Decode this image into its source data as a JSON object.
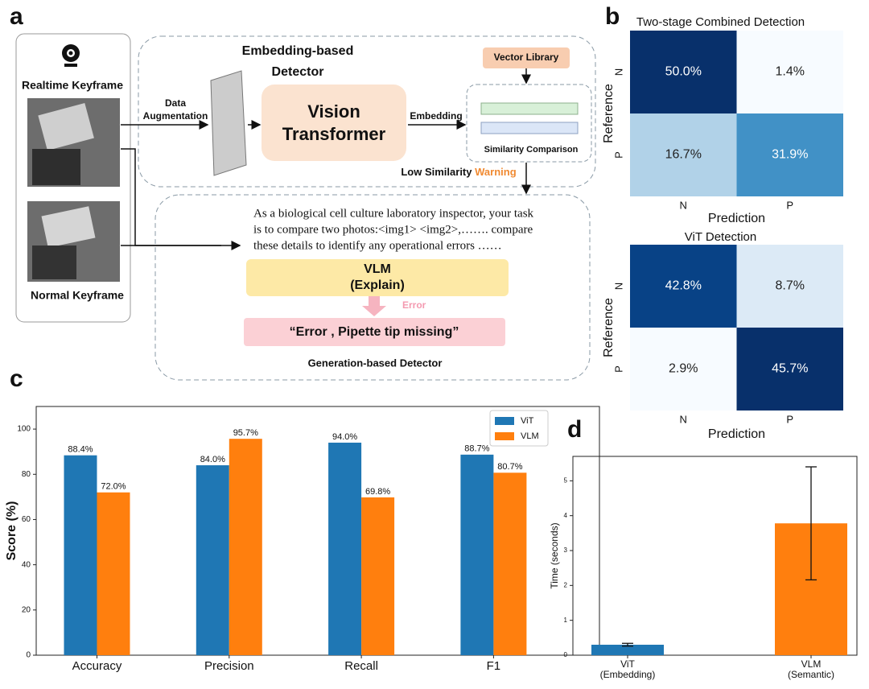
{
  "diagram": {
    "panel_labels": [
      "a",
      "b",
      "c",
      "d"
    ],
    "realtime_label": "Realtime Keyframe",
    "normal_label": "Normal Keyframe",
    "embedding_detector": [
      "Embedding-based",
      "Detector"
    ],
    "augmentation": [
      "Data",
      "Augmentation"
    ],
    "vit_box": [
      "Vision",
      "Transformer"
    ],
    "embedding_arrow": "Embedding",
    "vector_library": "Vector Library",
    "similarity": "Similarity Comparison",
    "low_similarity": "Low Similarity",
    "warning": "Warning",
    "prompt": [
      "As a biological cell culture laboratory inspector, your task",
      "is to compare two photos:<img1> <img2>,……. compare",
      "these details to identify any operational errors ……"
    ],
    "vlm_box": [
      "VLM",
      "(Explain)"
    ],
    "error_arrow": "Error",
    "error_output": "“Error , Pipette tip missing”",
    "generation_detector": "Generation-based  Detector"
  },
  "chart_data": [
    {
      "type": "heatmap",
      "title": "Two-stage Combined Detection",
      "x_label": "Prediction",
      "y_label": "Reference",
      "x_categories": [
        "N",
        "P"
      ],
      "y_categories": [
        "N",
        "P"
      ],
      "values": [
        [
          50.0,
          1.4
        ],
        [
          16.7,
          31.9
        ]
      ],
      "value_labels": [
        [
          "50.0%",
          "1.4%"
        ],
        [
          "16.7%",
          "31.9%"
        ]
      ],
      "colormap": [
        "#f7fbff",
        "#deebf7",
        "#c6dbef",
        "#9ecae1",
        "#6baed6",
        "#4292c6",
        "#2171b5",
        "#08519c",
        "#08306b"
      ]
    },
    {
      "type": "heatmap",
      "title": "ViT Detection",
      "x_label": "Prediction",
      "y_label": "Reference",
      "x_categories": [
        "N",
        "P"
      ],
      "y_categories": [
        "N",
        "P"
      ],
      "values": [
        [
          42.8,
          8.7
        ],
        [
          2.9,
          45.7
        ]
      ],
      "value_labels": [
        [
          "42.8%",
          "8.7%"
        ],
        [
          "2.9%",
          "45.7%"
        ]
      ],
      "colormap": [
        "#f7fbff",
        "#deebf7",
        "#c6dbef",
        "#9ecae1",
        "#6baed6",
        "#4292c6",
        "#2171b5",
        "#08519c",
        "#08306b"
      ]
    },
    {
      "type": "bar",
      "y_label": "Score (%)",
      "categories": [
        "Accuracy",
        "Precision",
        "Recall",
        "F1"
      ],
      "series": [
        {
          "name": "ViT",
          "color": "#1f77b4",
          "values": [
            88.4,
            84.0,
            94.0,
            88.7
          ],
          "value_labels": [
            "88.4%",
            "84.0%",
            "94.0%",
            "88.7%"
          ]
        },
        {
          "name": "VLM",
          "color": "#ff7f0e",
          "values": [
            72.0,
            95.7,
            69.8,
            80.7
          ],
          "value_labels": [
            "72.0%",
            "95.7%",
            "69.8%",
            "80.7%"
          ]
        }
      ],
      "ylim": [
        0,
        110
      ],
      "yticks": [
        0,
        20,
        40,
        60,
        80,
        100
      ],
      "legend": "upper right"
    },
    {
      "type": "bar",
      "y_label": "Time (seconds)",
      "categories": [
        [
          "ViT",
          "(Embedding)"
        ],
        [
          "VLM",
          "(Semantic)"
        ]
      ],
      "values": [
        0.3,
        3.78
      ],
      "errors": [
        0.04,
        1.62
      ],
      "colors": [
        "#1f77b4",
        "#ff7f0e"
      ],
      "ylim": [
        0,
        5.7
      ],
      "yticks": [
        0,
        1,
        2,
        3,
        4,
        5
      ]
    }
  ]
}
